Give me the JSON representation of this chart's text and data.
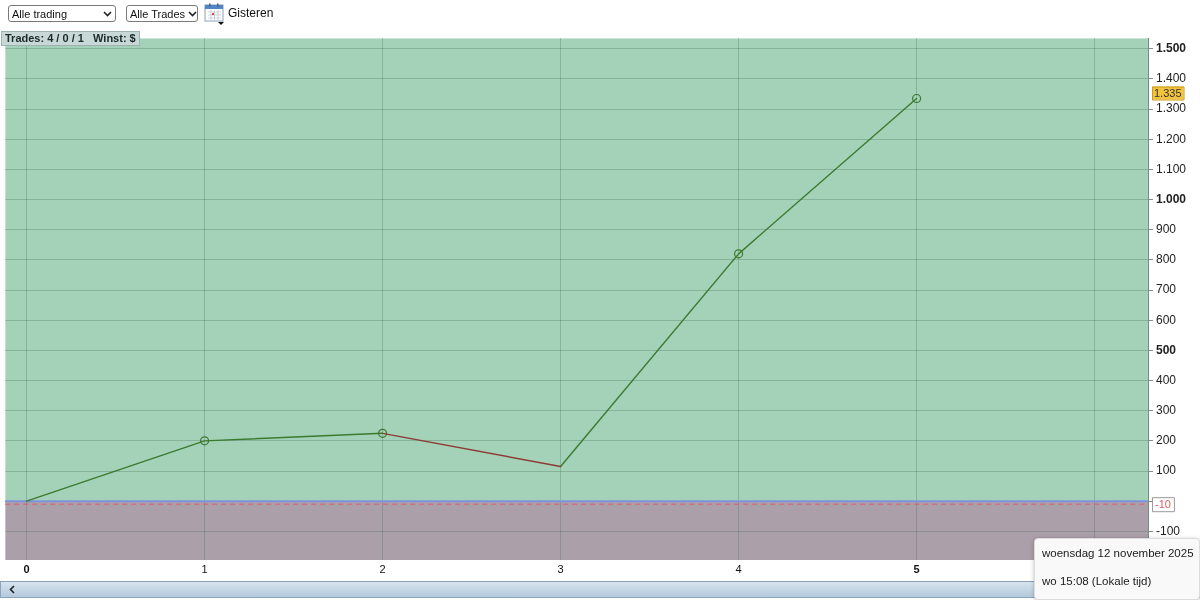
{
  "chart_data": {
    "type": "line",
    "series": [
      {
        "color": "#3c7a2e",
        "x": [
          0,
          1,
          2
        ],
        "values": [
          0,
          200,
          225
        ],
        "marker": "none"
      },
      {
        "color": "#8e3b36",
        "x": [
          2,
          3
        ],
        "values": [
          225,
          115
        ],
        "marker": "none"
      },
      {
        "color": "#3c7a2e",
        "x": [
          3,
          4,
          5
        ],
        "values": [
          115,
          820,
          1335
        ],
        "marker": "none"
      },
      {
        "type": "scatter",
        "color": "#3c7a2e",
        "x": [
          1,
          2,
          4,
          5
        ],
        "values": [
          200,
          225,
          820,
          1335
        ],
        "marker": "circle"
      }
    ],
    "xlim": [
      -0.12,
      6.3
    ],
    "xticks": [
      0,
      1,
      2,
      3,
      4,
      5,
      {
        "value": 6,
        "label": null
      }
    ],
    "ylim": [
      -195,
      1535
    ],
    "yticks": [
      -100,
      {
        "value": 0,
        "label": null
      },
      100,
      200,
      300,
      400,
      500,
      600,
      700,
      800,
      900,
      {
        "value": 1000,
        "label": "1.000"
      },
      {
        "value": 1100,
        "label": "1.100"
      },
      {
        "value": 1200,
        "label": "1.200"
      },
      {
        "value": 1300,
        "label": "1.300"
      },
      {
        "value": 1400,
        "label": "1.400"
      },
      {
        "value": 1500,
        "label": "1.500"
      }
    ],
    "grid": true,
    "bands": [
      {
        "axis": "y",
        "from": 0,
        "to": 1535,
        "color": "#a3d2b8"
      },
      {
        "axis": "y",
        "from": -195,
        "to": 0,
        "color": "#ab9fa9"
      }
    ],
    "ref_lines": [
      {
        "axis": "y",
        "value": 0,
        "color": "#7f93dd"
      },
      {
        "axis": "y",
        "value": -10,
        "label": "-10",
        "color": "#d9606a",
        "line_style": "dashed"
      }
    ],
    "annotations": [
      "Alle trading",
      "Alle Trades",
      "Gisteren",
      "Trades: 4 / 0 / 1   Winst: $",
      "woensdag 12 november 2025",
      "wo 15:08 (Lokale tijd)",
      "1.335"
    ]
  }
}
